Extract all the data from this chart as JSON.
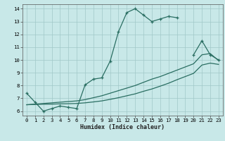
{
  "xlabel": "Humidex (Indice chaleur)",
  "bg_color": "#c8e8e8",
  "grid_color": "#a0c8c8",
  "line_color": "#2a6e62",
  "xlim": [
    -0.5,
    23.5
  ],
  "ylim": [
    5.65,
    14.35
  ],
  "xticks": [
    0,
    1,
    2,
    3,
    4,
    5,
    6,
    7,
    8,
    9,
    10,
    11,
    12,
    13,
    14,
    15,
    16,
    17,
    18,
    19,
    20,
    21,
    22,
    23
  ],
  "yticks": [
    6,
    7,
    8,
    9,
    10,
    11,
    12,
    13,
    14
  ],
  "curve1_x": [
    0,
    1,
    2,
    3,
    4,
    5,
    6,
    7,
    8,
    9,
    10,
    11,
    12,
    13,
    14,
    15,
    16,
    17,
    18
  ],
  "curve1_y": [
    7.4,
    6.7,
    6.0,
    6.2,
    6.4,
    6.3,
    6.2,
    8.05,
    8.5,
    8.6,
    9.9,
    12.2,
    13.7,
    14.0,
    13.5,
    13.0,
    13.2,
    13.4,
    13.3
  ],
  "curve2_x": [
    0,
    1,
    2,
    3,
    4,
    5,
    6,
    7,
    8,
    9,
    10,
    11,
    12,
    13,
    14,
    15,
    16,
    17,
    18,
    19,
    20,
    21,
    22,
    23
  ],
  "curve2_y": [
    6.5,
    6.55,
    6.6,
    6.65,
    6.7,
    6.75,
    6.8,
    6.9,
    7.05,
    7.2,
    7.4,
    7.6,
    7.8,
    8.0,
    8.25,
    8.5,
    8.7,
    8.95,
    9.2,
    9.45,
    9.7,
    10.4,
    10.5,
    9.95
  ],
  "curve3_x": [
    0,
    1,
    2,
    3,
    4,
    5,
    6,
    7,
    8,
    9,
    10,
    11,
    12,
    13,
    14,
    15,
    16,
    17,
    18,
    19,
    20,
    21,
    22,
    23
  ],
  "curve3_y": [
    6.5,
    6.52,
    6.54,
    6.55,
    6.57,
    6.58,
    6.6,
    6.65,
    6.72,
    6.8,
    6.92,
    7.05,
    7.2,
    7.35,
    7.55,
    7.73,
    7.95,
    8.18,
    8.45,
    8.7,
    8.95,
    9.6,
    9.75,
    9.65
  ],
  "curve4_x": [
    20,
    21,
    22,
    23
  ],
  "curve4_y": [
    10.4,
    11.5,
    10.4,
    10.0
  ]
}
